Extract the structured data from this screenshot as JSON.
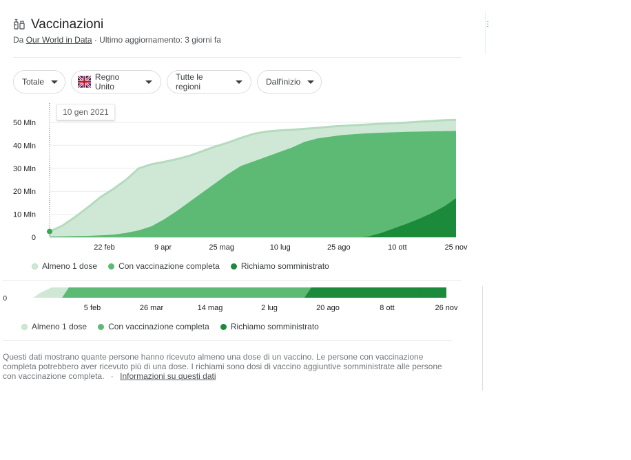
{
  "header": {
    "title": "Vaccinazioni",
    "source_prefix": "Da",
    "source_link": "Our World in Data",
    "updated": "· Ultimo aggiornamento: 3 giorni fa"
  },
  "filters": [
    {
      "label": "Totale"
    },
    {
      "label": "Regno Unito"
    },
    {
      "label": "Tutte le regioni"
    },
    {
      "label": "Dall'inizio"
    }
  ],
  "tooltip": "10 gen 2021",
  "legend": [
    {
      "label": "Almeno 1 dose",
      "color": "#cfe8d5"
    },
    {
      "label": "Con vaccinazione completa",
      "color": "#5dba74"
    },
    {
      "label": "Richiamo somministrato",
      "color": "#1b8a3a"
    }
  ],
  "footer": {
    "text": "Questi dati mostrano quante persone hanno ricevuto almeno una dose di un vaccino. Le persone con vaccinazione completa potrebbero aver ricevuto più di una dose. I richiami sono dosi di vaccino aggiuntive somministrate alle persone con vaccinazione completa.",
    "sep": "·",
    "link": "Informazioni su questi dati"
  },
  "chart_data": [
    {
      "type": "area",
      "ylabel_ticks": [
        "0",
        "10 Mln",
        "20 Mln",
        "30 Mln",
        "40 Mln",
        "50 Mln"
      ],
      "ylim": [
        0,
        50
      ],
      "x_tick_labels": [
        "22 feb",
        "9 apr",
        "25 mag",
        "10 lug",
        "25 ago",
        "10 ott",
        "25 nov"
      ],
      "x_tick_days": [
        53,
        99,
        145,
        191,
        237,
        283,
        329
      ],
      "xlim_days": [
        10,
        329
      ],
      "x_origin": "2021-01-01",
      "series": [
        {
          "name": "Almeno 1 dose",
          "color": "#cfe8d5",
          "x": [
            10,
            20,
            30,
            40,
            50,
            60,
            70,
            80,
            90,
            100,
            110,
            120,
            130,
            140,
            150,
            160,
            170,
            180,
            190,
            200,
            210,
            220,
            230,
            240,
            250,
            260,
            270,
            280,
            290,
            300,
            310,
            320,
            329
          ],
          "values": [
            2.5,
            5.0,
            8.8,
            13.0,
            17.5,
            21.0,
            25.0,
            30.0,
            31.8,
            32.8,
            34.0,
            35.5,
            37.5,
            39.5,
            41.2,
            43.2,
            45.0,
            46.0,
            46.5,
            46.8,
            47.2,
            47.6,
            48.1,
            48.5,
            48.8,
            49.1,
            49.4,
            49.6,
            49.9,
            50.3,
            50.6,
            51.0,
            51.1
          ]
        },
        {
          "name": "Con vaccinazione completa",
          "color": "#5dba74",
          "x": [
            10,
            20,
            30,
            40,
            50,
            60,
            70,
            80,
            90,
            100,
            110,
            120,
            130,
            140,
            150,
            160,
            170,
            180,
            190,
            200,
            210,
            220,
            230,
            240,
            250,
            260,
            270,
            280,
            290,
            300,
            310,
            320,
            329
          ],
          "values": [
            0.3,
            0.4,
            0.5,
            0.6,
            0.8,
            1.1,
            1.9,
            3.0,
            4.8,
            7.8,
            11.5,
            15.5,
            19.5,
            23.5,
            27.5,
            31.0,
            33.0,
            35.0,
            37.0,
            39.0,
            41.5,
            43.0,
            43.8,
            44.5,
            44.9,
            45.3,
            45.5,
            45.7,
            45.9,
            46.0,
            46.1,
            46.2,
            46.3
          ]
        },
        {
          "name": "Richiamo somministrato",
          "color": "#1b8a3a",
          "x": [
            10,
            255,
            260,
            270,
            280,
            290,
            300,
            310,
            320,
            329
          ],
          "values": [
            0,
            0,
            0.3,
            1.8,
            3.8,
            5.8,
            8.0,
            10.5,
            13.5,
            17.0
          ]
        }
      ]
    },
    {
      "type": "area",
      "ylabel_ticks": [
        "0"
      ],
      "x_tick_labels": [
        "5 feb",
        "26 mar",
        "14 mag",
        "2 lug",
        "20 ago",
        "8 ott",
        "26 nov"
      ]
    }
  ]
}
